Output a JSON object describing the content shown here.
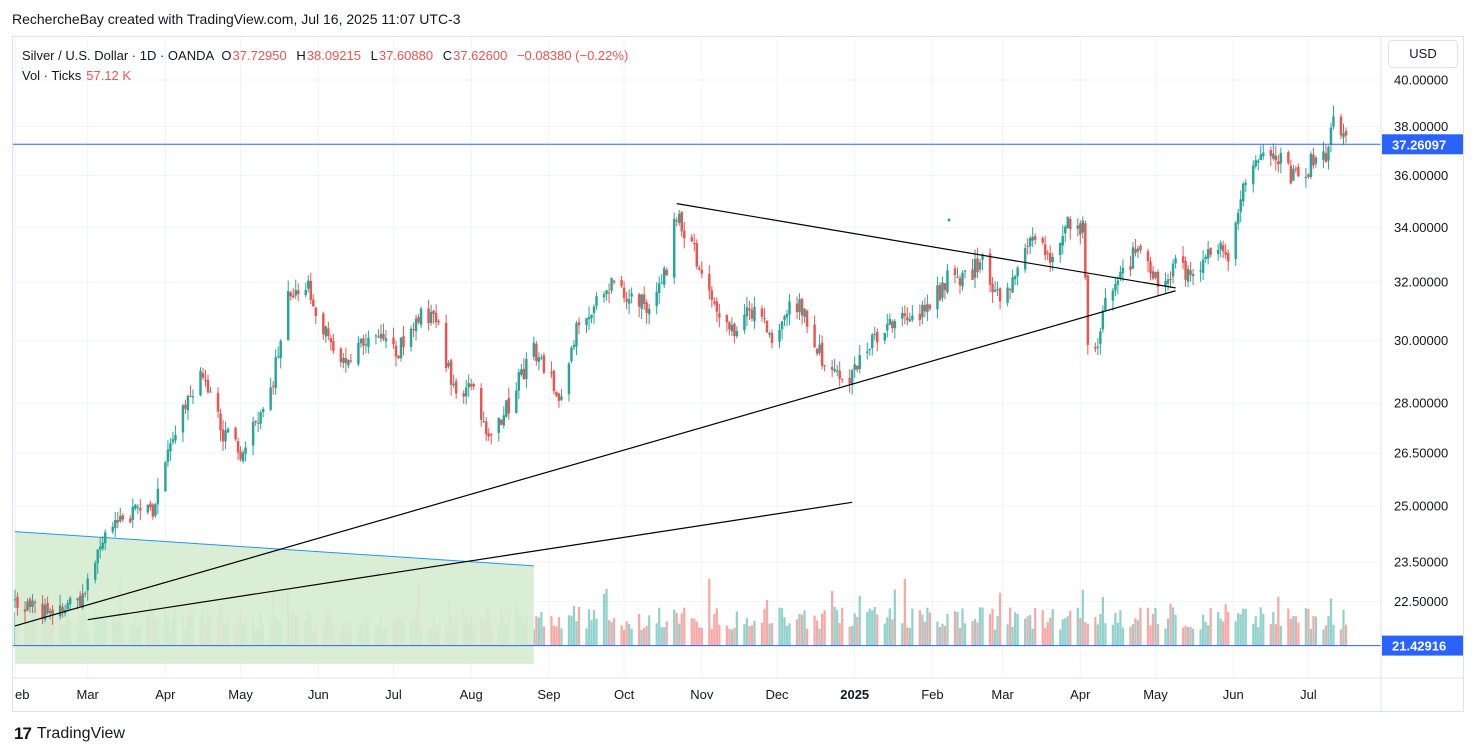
{
  "header": {
    "text": "RechercheBay created with TradingView.com, Jul 16, 2025 11:07 UTC-3"
  },
  "legend": {
    "symbol": "Silver / U.S. Dollar · 1D · OANDA",
    "open_label": "O",
    "open": "37.72950",
    "high_label": "H",
    "high": "38.09215",
    "low_label": "L",
    "low": "37.60880",
    "close_label": "C",
    "close": "37.62600",
    "change": "−0.08380 (−0.22%)",
    "volume_label": "Vol · Ticks",
    "volume": "57.12 K"
  },
  "currency_button": {
    "label": "USD"
  },
  "footer": {
    "brand": "TradingView",
    "logo_glyph": "17"
  },
  "colors": {
    "up": "#26a69a",
    "down": "#ef5350",
    "price_line": "#2962ff",
    "label_bg": "#2962ff",
    "zone_fill": "#d6ecd2",
    "zone_line": "#2196f3"
  },
  "chart_data": {
    "type": "candlestick",
    "y_scale": "log",
    "x_ticks": [
      {
        "label": "eb",
        "date": "2024-02-01"
      },
      {
        "label": "Mar",
        "date": "2024-03-01"
      },
      {
        "label": "Apr",
        "date": "2024-04-01"
      },
      {
        "label": "May",
        "date": "2024-05-01"
      },
      {
        "label": "Jun",
        "date": "2024-06-01"
      },
      {
        "label": "Jul",
        "date": "2024-07-01"
      },
      {
        "label": "Aug",
        "date": "2024-08-01"
      },
      {
        "label": "Sep",
        "date": "2024-09-01"
      },
      {
        "label": "Oct",
        "date": "2024-10-01"
      },
      {
        "label": "Nov",
        "date": "2024-11-01"
      },
      {
        "label": "Dec",
        "date": "2024-12-01"
      },
      {
        "label": "2025",
        "date": "2025-01-01",
        "bold": true
      },
      {
        "label": "Feb",
        "date": "2025-02-01"
      },
      {
        "label": "Mar",
        "date": "2025-03-01"
      },
      {
        "label": "Apr",
        "date": "2025-04-01"
      },
      {
        "label": "May",
        "date": "2025-05-01"
      },
      {
        "label": "Jun",
        "date": "2025-06-01"
      },
      {
        "label": "Jul",
        "date": "2025-07-01"
      }
    ],
    "y_ticks": [
      "40.00000",
      "38.00000",
      "36.00000",
      "34.00000",
      "32.00000",
      "30.00000",
      "28.00000",
      "26.50000",
      "25.00000",
      "23.50000",
      "22.50000"
    ],
    "price_labels": [
      {
        "value": 37.26097,
        "text": "37.26097"
      },
      {
        "value": 21.42916,
        "text": "21.42916"
      }
    ],
    "anchors": [
      {
        "date": "2024-02-01",
        "price": 22.5
      },
      {
        "date": "2024-02-15",
        "price": 22.2
      },
      {
        "date": "2024-02-28",
        "price": 22.6
      },
      {
        "date": "2024-03-05",
        "price": 23.8
      },
      {
        "date": "2024-03-12",
        "price": 24.7
      },
      {
        "date": "2024-03-22",
        "price": 24.9
      },
      {
        "date": "2024-03-27",
        "price": 24.8
      },
      {
        "date": "2024-04-03",
        "price": 26.8
      },
      {
        "date": "2024-04-12",
        "price": 28.5
      },
      {
        "date": "2024-04-16",
        "price": 28.9
      },
      {
        "date": "2024-04-23",
        "price": 27.2
      },
      {
        "date": "2024-05-01",
        "price": 26.5
      },
      {
        "date": "2024-05-08",
        "price": 27.4
      },
      {
        "date": "2024-05-14",
        "price": 28.8
      },
      {
        "date": "2024-05-20",
        "price": 31.5
      },
      {
        "date": "2024-05-28",
        "price": 31.8
      },
      {
        "date": "2024-06-07",
        "price": 29.6
      },
      {
        "date": "2024-06-14",
        "price": 29.4
      },
      {
        "date": "2024-06-21",
        "price": 30.3
      },
      {
        "date": "2024-07-02",
        "price": 29.5
      },
      {
        "date": "2024-07-10",
        "price": 30.8
      },
      {
        "date": "2024-07-17",
        "price": 30.9
      },
      {
        "date": "2024-07-26",
        "price": 28.2
      },
      {
        "date": "2024-08-02",
        "price": 28.4
      },
      {
        "date": "2024-08-07",
        "price": 26.9
      },
      {
        "date": "2024-08-15",
        "price": 27.8
      },
      {
        "date": "2024-08-26",
        "price": 29.8
      },
      {
        "date": "2024-09-06",
        "price": 28.2
      },
      {
        "date": "2024-09-13",
        "price": 30.6
      },
      {
        "date": "2024-09-26",
        "price": 31.9
      },
      {
        "date": "2024-10-03",
        "price": 31.6
      },
      {
        "date": "2024-10-10",
        "price": 31.1
      },
      {
        "date": "2024-10-18",
        "price": 32.3
      },
      {
        "date": "2024-10-22",
        "price": 34.6
      },
      {
        "date": "2024-10-30",
        "price": 32.9
      },
      {
        "date": "2024-11-06",
        "price": 31.0
      },
      {
        "date": "2024-11-14",
        "price": 30.2
      },
      {
        "date": "2024-11-22",
        "price": 31.2
      },
      {
        "date": "2024-11-29",
        "price": 30.2
      },
      {
        "date": "2024-12-06",
        "price": 31.3
      },
      {
        "date": "2024-12-12",
        "price": 31.0
      },
      {
        "date": "2024-12-19",
        "price": 29.4
      },
      {
        "date": "2024-12-30",
        "price": 28.8
      },
      {
        "date": "2025-01-10",
        "price": 30.2
      },
      {
        "date": "2025-01-20",
        "price": 30.6
      },
      {
        "date": "2025-01-31",
        "price": 31.2
      },
      {
        "date": "2025-02-07",
        "price": 32.1
      },
      {
        "date": "2025-02-14",
        "price": 32.2
      },
      {
        "date": "2025-02-21",
        "price": 32.7
      },
      {
        "date": "2025-02-28",
        "price": 31.2
      },
      {
        "date": "2025-03-06",
        "price": 32.5
      },
      {
        "date": "2025-03-14",
        "price": 33.8
      },
      {
        "date": "2025-03-21",
        "price": 32.9
      },
      {
        "date": "2025-03-28",
        "price": 34.2
      },
      {
        "date": "2025-04-02",
        "price": 33.9
      },
      {
        "date": "2025-04-04",
        "price": 29.8
      },
      {
        "date": "2025-04-08",
        "price": 29.6
      },
      {
        "date": "2025-04-11",
        "price": 31.6
      },
      {
        "date": "2025-04-18",
        "price": 32.5
      },
      {
        "date": "2025-04-25",
        "price": 33.2
      },
      {
        "date": "2025-05-02",
        "price": 32.1
      },
      {
        "date": "2025-05-09",
        "price": 32.6
      },
      {
        "date": "2025-05-16",
        "price": 32.0
      },
      {
        "date": "2025-05-23",
        "price": 33.2
      },
      {
        "date": "2025-05-30",
        "price": 33.0
      },
      {
        "date": "2025-06-05",
        "price": 35.7
      },
      {
        "date": "2025-06-09",
        "price": 36.3
      },
      {
        "date": "2025-06-17",
        "price": 37.0
      },
      {
        "date": "2025-06-24",
        "price": 36.0
      },
      {
        "date": "2025-06-30",
        "price": 36.1
      },
      {
        "date": "2025-07-04",
        "price": 36.9
      },
      {
        "date": "2025-07-08",
        "price": 36.7
      },
      {
        "date": "2025-07-11",
        "price": 38.4
      },
      {
        "date": "2025-07-16",
        "price": 37.63
      }
    ],
    "trendlines": [
      {
        "name": "upper-triangle-line",
        "from": {
          "date": "2024-10-22",
          "price": 34.9
        },
        "to": {
          "date": "2025-05-09",
          "price": 31.8
        }
      },
      {
        "name": "lower-triangle-line",
        "from": {
          "date": "2024-02-01",
          "price": 21.9
        },
        "to": {
          "date": "2025-05-09",
          "price": 31.7
        }
      },
      {
        "name": "short-support-line",
        "from": {
          "date": "2024-03-01",
          "price": 22.05
        },
        "to": {
          "date": "2024-12-31",
          "price": 25.1
        }
      }
    ],
    "zone": {
      "name": "accumulation-zone",
      "from": {
        "date": "2024-02-01",
        "price": 24.3
      },
      "to": {
        "date": "2024-08-26",
        "price": 23.4
      },
      "bottom_price": 21.0
    },
    "volume_range": [
      0,
      70000
    ]
  }
}
